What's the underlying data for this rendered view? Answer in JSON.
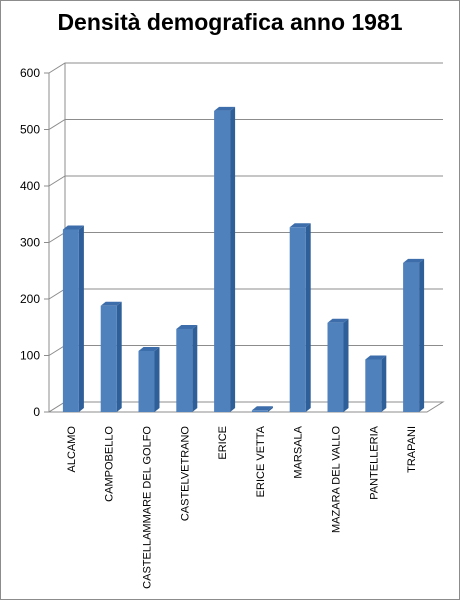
{
  "chart_data": {
    "type": "bar",
    "title": "Densità demografica anno 1981",
    "categories": [
      "ALCAMO",
      "CAMPOBELLO",
      "CASTELLAMMARE DEL GOLFO",
      "CASTELVETRANO",
      "ERICE",
      "ERICE VETTA",
      "MARSALA",
      "MAZARA DEL VALLO",
      "PANTELLERIA",
      "TRAPANI"
    ],
    "values": [
      323,
      188,
      108,
      147,
      533,
      3,
      327,
      158,
      93,
      264
    ],
    "ylim": [
      0,
      600
    ],
    "yticks": [
      0,
      100,
      200,
      300,
      400,
      500,
      600
    ],
    "grid": true,
    "legend": "none",
    "bar_color": "#4f81bd",
    "bar_side_color": "#2f5f98",
    "bar_top_color": "#3d6eab"
  }
}
